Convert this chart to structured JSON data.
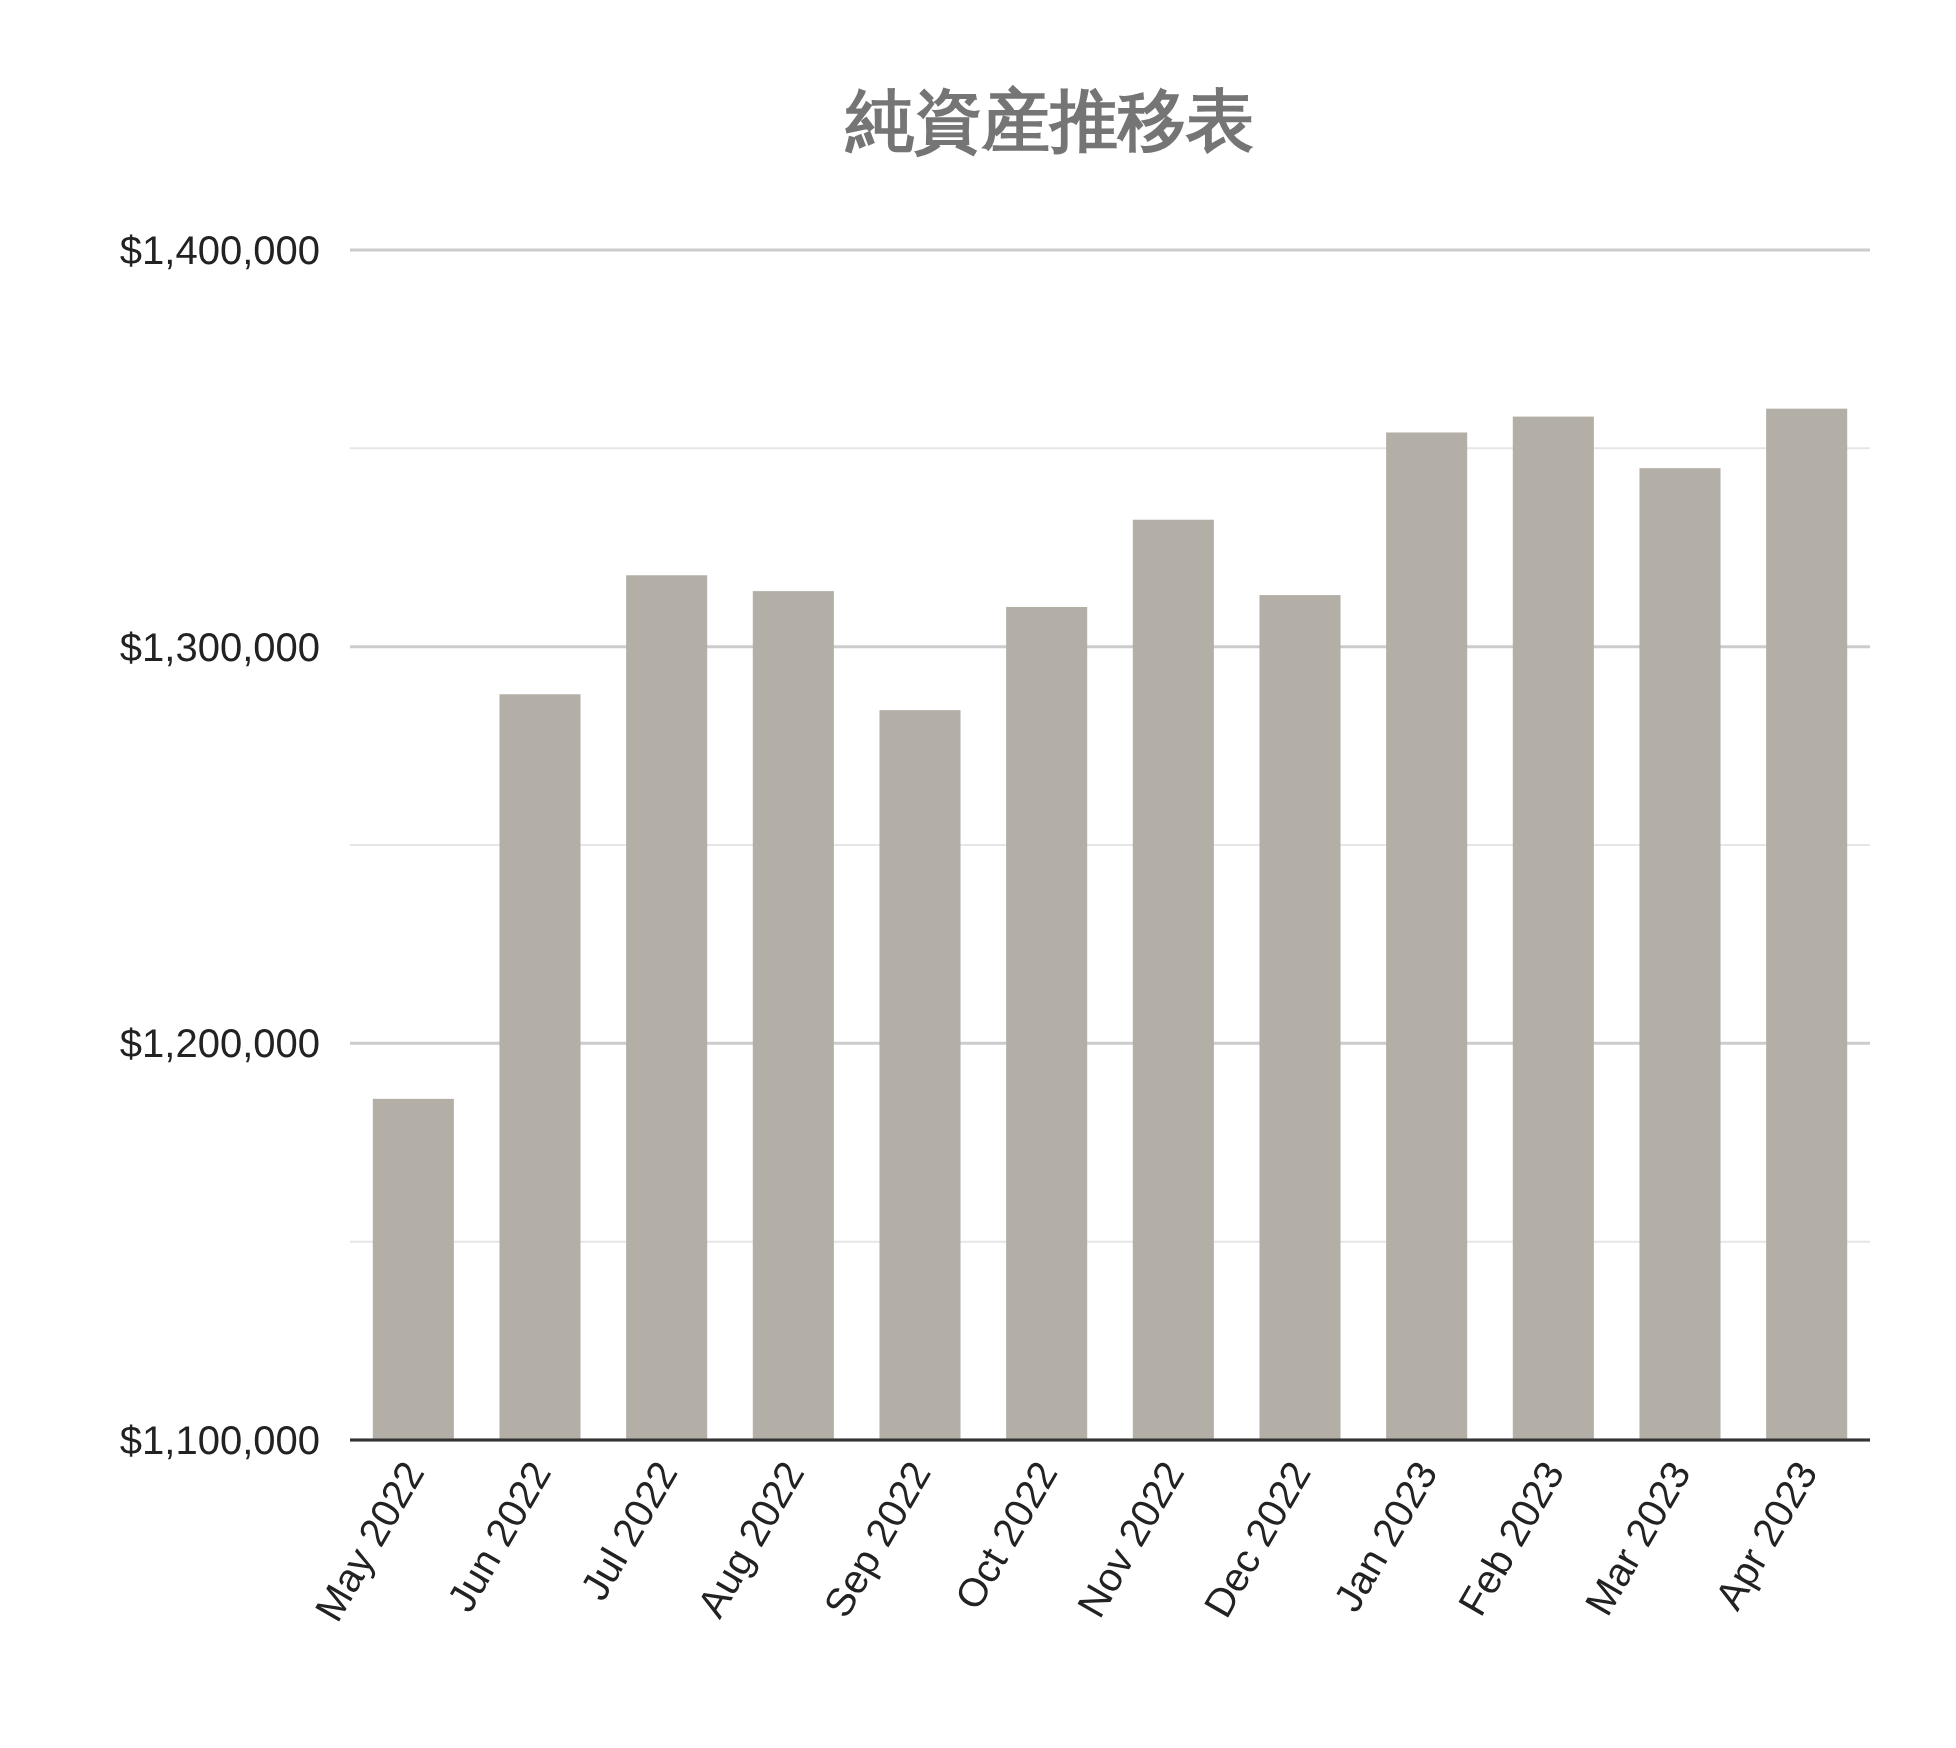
{
  "chart_data": {
    "type": "bar",
    "title": "純資産推移表",
    "categories": [
      "May 2022",
      "Jun 2022",
      "Jul 2022",
      "Aug 2022",
      "Sep 2022",
      "Oct 2022",
      "Nov 2022",
      "Dec 2022",
      "Jan 2023",
      "Feb 2023",
      "Mar 2023",
      "Apr 2023"
    ],
    "values": [
      1186000,
      1288000,
      1318000,
      1314000,
      1284000,
      1310000,
      1332000,
      1313000,
      1354000,
      1358000,
      1345000,
      1360000
    ],
    "color": "#b3afa7",
    "ylim": [
      1100000,
      1400000
    ],
    "yticks": [
      {
        "value": 1100000,
        "label": "$1,100,000"
      },
      {
        "value": 1150000,
        "label": null
      },
      {
        "value": 1200000,
        "label": "$1,200,000"
      },
      {
        "value": 1250000,
        "label": null
      },
      {
        "value": 1300000,
        "label": "$1,300,000"
      },
      {
        "value": 1350000,
        "label": null
      },
      {
        "value": 1400000,
        "label": "$1,400,000"
      }
    ],
    "grid": "y"
  }
}
